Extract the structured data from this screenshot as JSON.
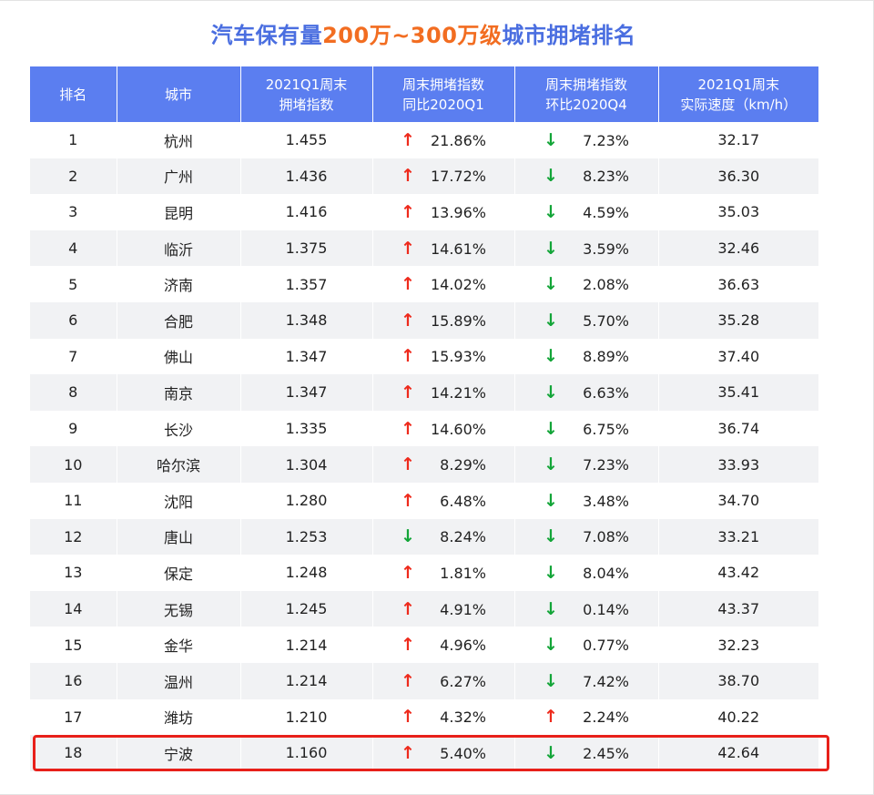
{
  "title": {
    "part1": "汽车保有量",
    "part2": "200万~300万级",
    "part3": "城市拥堵排名"
  },
  "colors": {
    "title": "#4a6ee0",
    "title_highlight": "#f26d21",
    "header_bg": "#5b7ef0",
    "row_stripe": "#f1f2f4",
    "arrow_up": "#ee2a1c",
    "arrow_down": "#13a538",
    "highlight_box": "#e8201a"
  },
  "chart_data": {
    "type": "table",
    "columns": [
      {
        "line1": "排名",
        "line2": ""
      },
      {
        "line1": "城市",
        "line2": ""
      },
      {
        "line1": "2021Q1周末",
        "line2": "拥堵指数"
      },
      {
        "line1": "周末拥堵指数",
        "line2": "同比2020Q1"
      },
      {
        "line1": "周末拥堵指数",
        "line2": "环比2020Q4"
      },
      {
        "line1": "2021Q1周末",
        "line2": "实际速度（km/h）"
      }
    ],
    "rows": [
      {
        "rank": "1",
        "city": "杭州",
        "index": "1.455",
        "yoy_dir": "up",
        "yoy": "21.86%",
        "qoq_dir": "down",
        "qoq": "7.23%",
        "speed": "32.17"
      },
      {
        "rank": "2",
        "city": "广州",
        "index": "1.436",
        "yoy_dir": "up",
        "yoy": "17.72%",
        "qoq_dir": "down",
        "qoq": "8.23%",
        "speed": "36.30"
      },
      {
        "rank": "3",
        "city": "昆明",
        "index": "1.416",
        "yoy_dir": "up",
        "yoy": "13.96%",
        "qoq_dir": "down",
        "qoq": "4.59%",
        "speed": "35.03"
      },
      {
        "rank": "4",
        "city": "临沂",
        "index": "1.375",
        "yoy_dir": "up",
        "yoy": "14.61%",
        "qoq_dir": "down",
        "qoq": "3.59%",
        "speed": "32.46"
      },
      {
        "rank": "5",
        "city": "济南",
        "index": "1.357",
        "yoy_dir": "up",
        "yoy": "14.02%",
        "qoq_dir": "down",
        "qoq": "2.08%",
        "speed": "36.63"
      },
      {
        "rank": "6",
        "city": "合肥",
        "index": "1.348",
        "yoy_dir": "up",
        "yoy": "15.89%",
        "qoq_dir": "down",
        "qoq": "5.70%",
        "speed": "35.28"
      },
      {
        "rank": "7",
        "city": "佛山",
        "index": "1.347",
        "yoy_dir": "up",
        "yoy": "15.93%",
        "qoq_dir": "down",
        "qoq": "8.89%",
        "speed": "37.40"
      },
      {
        "rank": "8",
        "city": "南京",
        "index": "1.347",
        "yoy_dir": "up",
        "yoy": "14.21%",
        "qoq_dir": "down",
        "qoq": "6.63%",
        "speed": "35.41"
      },
      {
        "rank": "9",
        "city": "长沙",
        "index": "1.335",
        "yoy_dir": "up",
        "yoy": "14.60%",
        "qoq_dir": "down",
        "qoq": "6.75%",
        "speed": "36.74"
      },
      {
        "rank": "10",
        "city": "哈尔滨",
        "index": "1.304",
        "yoy_dir": "up",
        "yoy": "8.29%",
        "qoq_dir": "down",
        "qoq": "7.23%",
        "speed": "33.93"
      },
      {
        "rank": "11",
        "city": "沈阳",
        "index": "1.280",
        "yoy_dir": "up",
        "yoy": "6.48%",
        "qoq_dir": "down",
        "qoq": "3.48%",
        "speed": "34.70"
      },
      {
        "rank": "12",
        "city": "唐山",
        "index": "1.253",
        "yoy_dir": "down",
        "yoy": "8.24%",
        "qoq_dir": "down",
        "qoq": "7.08%",
        "speed": "33.21"
      },
      {
        "rank": "13",
        "city": "保定",
        "index": "1.248",
        "yoy_dir": "up",
        "yoy": "1.81%",
        "qoq_dir": "down",
        "qoq": "8.04%",
        "speed": "43.42"
      },
      {
        "rank": "14",
        "city": "无锡",
        "index": "1.245",
        "yoy_dir": "up",
        "yoy": "4.91%",
        "qoq_dir": "down",
        "qoq": "0.14%",
        "speed": "43.37"
      },
      {
        "rank": "15",
        "city": "金华",
        "index": "1.214",
        "yoy_dir": "up",
        "yoy": "4.96%",
        "qoq_dir": "down",
        "qoq": "0.77%",
        "speed": "32.23"
      },
      {
        "rank": "16",
        "city": "温州",
        "index": "1.214",
        "yoy_dir": "up",
        "yoy": "6.27%",
        "qoq_dir": "down",
        "qoq": "7.42%",
        "speed": "38.70"
      },
      {
        "rank": "17",
        "city": "潍坊",
        "index": "1.210",
        "yoy_dir": "up",
        "yoy": "4.32%",
        "qoq_dir": "up",
        "qoq": "2.24%",
        "speed": "40.22"
      },
      {
        "rank": "18",
        "city": "宁波",
        "index": "1.160",
        "yoy_dir": "up",
        "yoy": "5.40%",
        "qoq_dir": "down",
        "qoq": "2.45%",
        "speed": "42.64"
      }
    ],
    "highlighted_row": "18"
  }
}
